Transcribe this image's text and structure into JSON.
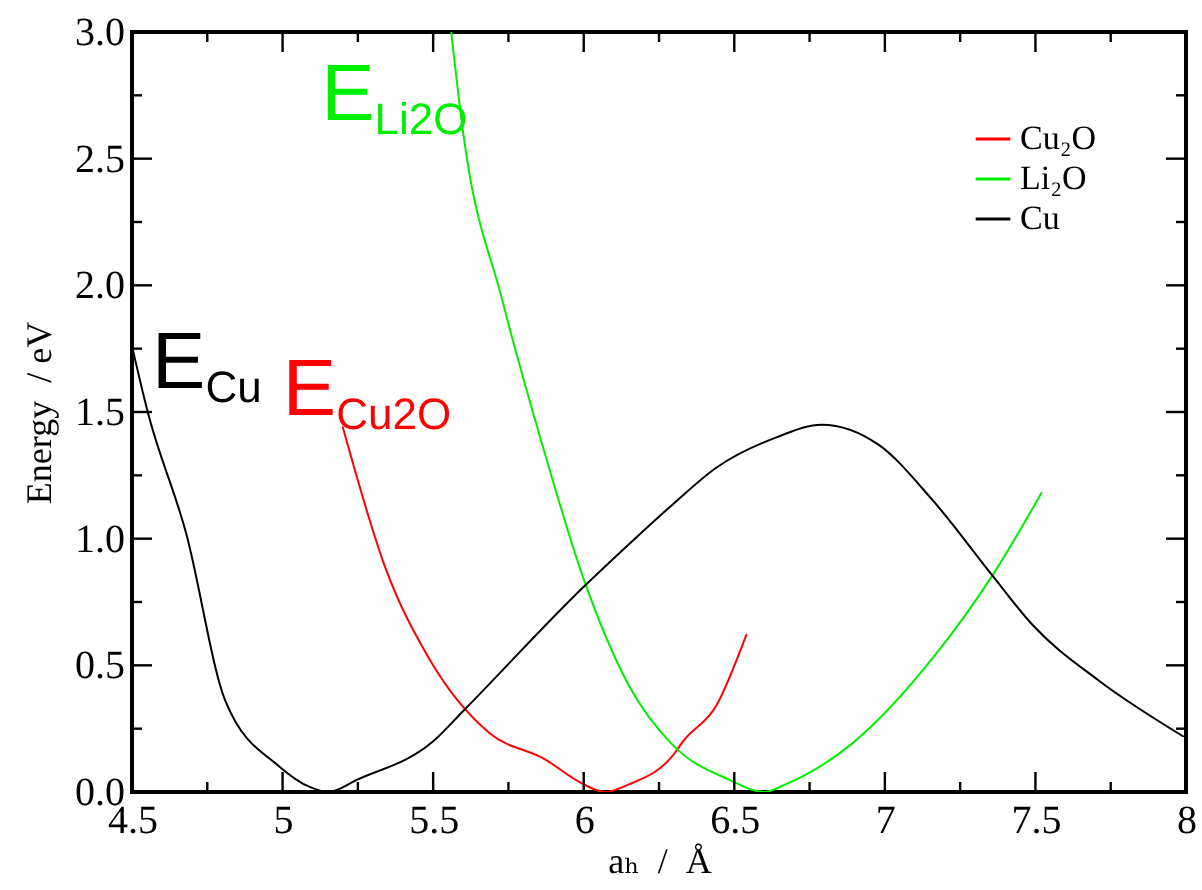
{
  "chart_data": {
    "type": "line",
    "xlabel": "aₕ  /  Å",
    "ylabel": "Energy  / eV",
    "xlim": [
      4.5,
      8
    ],
    "ylim": [
      0,
      3
    ],
    "xticks": [
      4.5,
      {
        "value": 4.75,
        "label": null
      },
      5,
      {
        "value": 5.25,
        "label": null
      },
      5.5,
      {
        "value": 5.75,
        "label": null
      },
      6,
      {
        "value": 6.25,
        "label": null
      },
      6.5,
      {
        "value": 6.75,
        "label": null
      },
      7,
      {
        "value": 7.25,
        "label": null
      },
      7.5,
      {
        "value": 7.75,
        "label": null
      },
      8
    ],
    "yticks": [
      {
        "value": 0,
        "label": "0.0"
      },
      {
        "value": 0.25,
        "label": null
      },
      {
        "value": 0.5,
        "label": "0.5"
      },
      {
        "value": 0.75,
        "label": null
      },
      {
        "value": 1,
        "label": "1.0"
      },
      {
        "value": 1.25,
        "label": null
      },
      {
        "value": 1.5,
        "label": "1.5"
      },
      {
        "value": 1.75,
        "label": null
      },
      {
        "value": 2,
        "label": "2.0"
      },
      {
        "value": 2.25,
        "label": null
      },
      {
        "value": 2.5,
        "label": "2.5"
      },
      {
        "value": 2.75,
        "label": null
      },
      {
        "value": 3,
        "label": "3.0"
      }
    ],
    "grid": false,
    "legend": "top right",
    "marker": "none",
    "line_style": "solid",
    "series": [
      {
        "name": "Cu₂O",
        "color": "#ff0000",
        "x": [
          5.2,
          5.34,
          5.49,
          5.69,
          5.87,
          6.0,
          6.07,
          6.15,
          6.3,
          6.33,
          6.44,
          6.54
        ],
        "values": [
          1.44,
          0.89,
          0.52,
          0.23,
          0.13,
          0.03,
          0.0,
          0.03,
          0.15,
          0.2,
          0.34,
          0.62
        ]
      },
      {
        "name": "Li₂O",
        "color": "#00ee00",
        "x": [
          5.56,
          5.6,
          5.73,
          5.87,
          6.0,
          6.15,
          6.3,
          6.48,
          6.6,
          6.67,
          6.89,
          7.16,
          7.36,
          7.52
        ],
        "values": [
          3.0,
          2.6,
          1.94,
          1.34,
          0.84,
          0.42,
          0.18,
          0.05,
          0.0,
          0.03,
          0.19,
          0.53,
          0.86,
          1.18
        ]
      },
      {
        "name": "Cu",
        "color": "#000000",
        "x": [
          4.5,
          4.55,
          4.68,
          4.81,
          4.99,
          5.09,
          5.15,
          5.25,
          5.5,
          5.6,
          6.0,
          6.17,
          6.3,
          6.44,
          6.64,
          6.79,
          6.98,
          7.16,
          7.36,
          7.49,
          7.71,
          7.99
        ],
        "values": [
          1.76,
          1.51,
          1.02,
          0.36,
          0.1,
          0.02,
          0.0,
          0.05,
          0.2,
          0.32,
          0.81,
          1.0,
          1.14,
          1.28,
          1.4,
          1.45,
          1.37,
          1.15,
          0.85,
          0.66,
          0.44,
          0.22
        ]
      }
    ],
    "annotations": [
      "E$_{Cu2O}$",
      "E$_{Li2O}$",
      "E$_{Cu}$"
    ]
  }
}
